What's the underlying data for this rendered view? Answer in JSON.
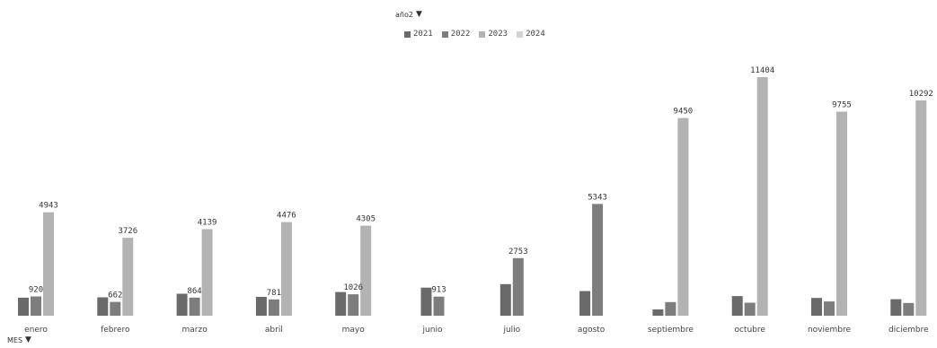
{
  "filters": {
    "series_field": "año2",
    "category_field": "MES",
    "dropdown_glyph": "▼"
  },
  "chart_data": {
    "type": "bar",
    "title": "",
    "xlabel": "",
    "ylabel": "",
    "ylim": [
      0,
      12000
    ],
    "grid": false,
    "legend": "top",
    "categories": [
      "enero",
      "febrero",
      "marzo",
      "abril",
      "mayo",
      "junio",
      "julio",
      "agosto",
      "septiembre",
      "octubre",
      "noviembre",
      "diciembre"
    ],
    "series": [
      {
        "name": "2021",
        "color": "#6a6a6a",
        "values": [
          860,
          880,
          1050,
          900,
          1130,
          1340,
          1510,
          1180,
          300,
          940,
          850,
          790
        ]
      },
      {
        "name": "2022",
        "color": "#7d7d7d",
        "values": [
          920,
          662,
          864,
          781,
          1026,
          913,
          2753,
          5343,
          650,
          620,
          680,
          610
        ]
      },
      {
        "name": "2023",
        "color": "#b3b3b3",
        "values": [
          4943,
          3726,
          4139,
          4476,
          4305,
          null,
          null,
          null,
          9450,
          11404,
          9755,
          10292
        ]
      },
      {
        "name": "2024",
        "color": "#d2d2d2",
        "values": [
          null,
          null,
          null,
          null,
          null,
          null,
          null,
          null,
          null,
          null,
          null,
          null
        ]
      }
    ],
    "data_labels": [
      {
        "category": "enero",
        "series": "2022",
        "text": "920"
      },
      {
        "category": "enero",
        "series": "2023",
        "text": "4943"
      },
      {
        "category": "febrero",
        "series": "2022",
        "text": "662"
      },
      {
        "category": "febrero",
        "series": "2023",
        "text": "3726"
      },
      {
        "category": "marzo",
        "series": "2022",
        "text": "864"
      },
      {
        "category": "marzo",
        "series": "2023",
        "text": "4139"
      },
      {
        "category": "abril",
        "series": "2022",
        "text": "781"
      },
      {
        "category": "abril",
        "series": "2023",
        "text": "4476"
      },
      {
        "category": "mayo",
        "series": "2022",
        "text": "1026"
      },
      {
        "category": "mayo",
        "series": "2023",
        "text": "4305"
      },
      {
        "category": "junio",
        "series": "2022",
        "text": "913"
      },
      {
        "category": "julio",
        "series": "2022",
        "text": "2753"
      },
      {
        "category": "agosto",
        "series": "2022",
        "text": "5343"
      },
      {
        "category": "septiembre",
        "series": "2023",
        "text": "9450"
      },
      {
        "category": "octubre",
        "series": "2023",
        "text": "11404"
      },
      {
        "category": "noviembre",
        "series": "2023",
        "text": "9755"
      },
      {
        "category": "diciembre",
        "series": "2023",
        "text": "10292"
      }
    ]
  }
}
